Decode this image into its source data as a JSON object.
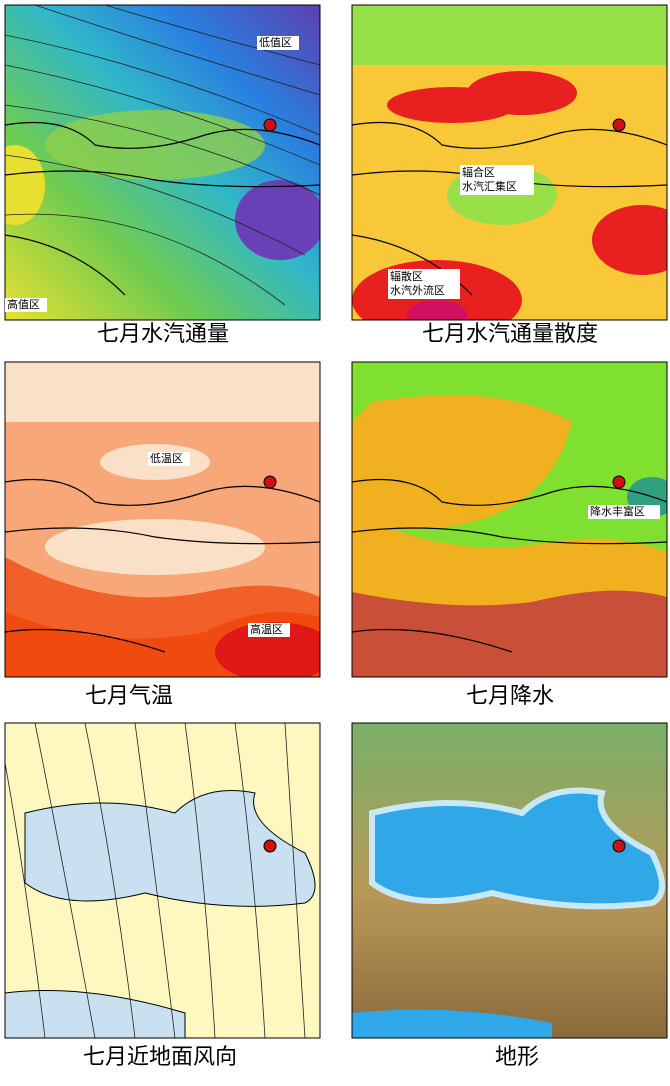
{
  "panels": [
    {
      "caption": "七月水汽通量",
      "labels": [
        [
          "低值区"
        ],
        [
          "高值区"
        ]
      ]
    },
    {
      "caption": "七月水汽通量散度",
      "labels": [
        [
          "辐合区",
          "水汽汇集区"
        ],
        [
          "辐散区",
          "水汽外流区"
        ]
      ]
    },
    {
      "caption": "七月气温",
      "labels": [
        [
          "低温区"
        ],
        [
          "高温区"
        ]
      ]
    },
    {
      "caption": "七月降水",
      "labels": [
        [
          "降水丰富区"
        ]
      ]
    },
    {
      "caption": "七月近地面风向",
      "labels": []
    },
    {
      "caption": "地形",
      "labels": []
    }
  ]
}
